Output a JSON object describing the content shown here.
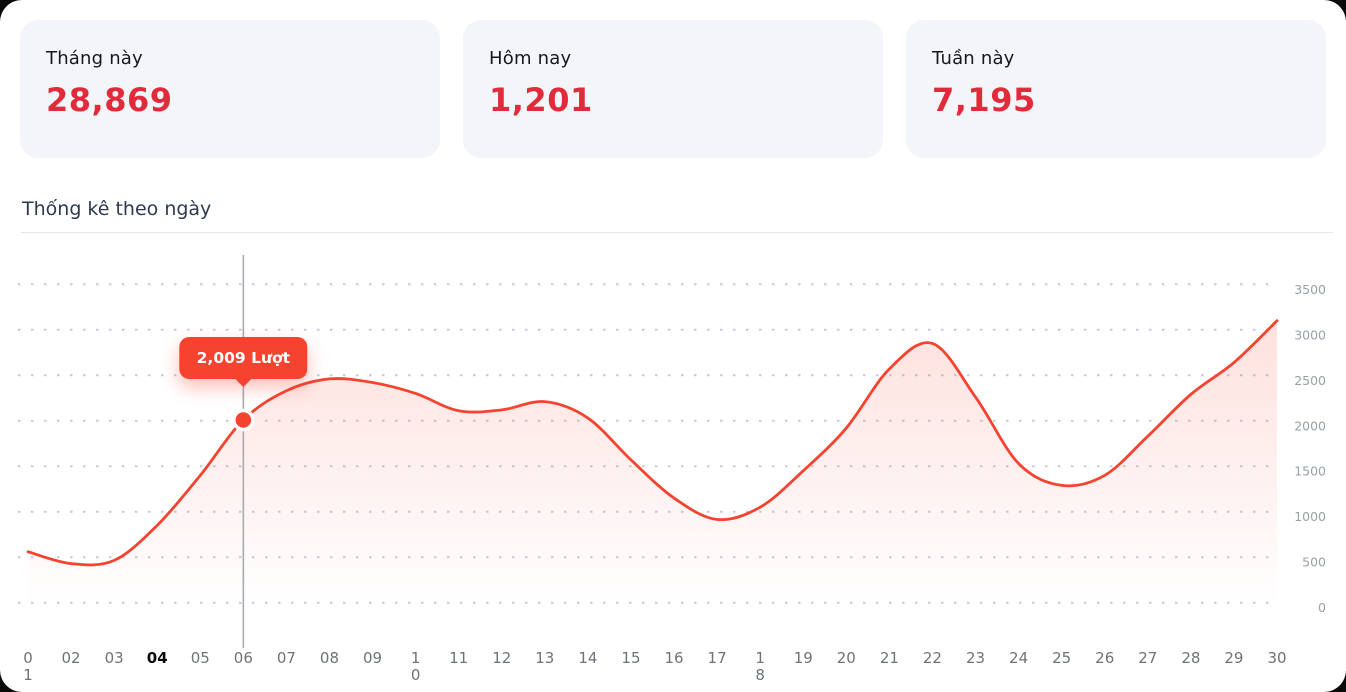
{
  "stats": [
    {
      "id": "month",
      "label": "Tháng này",
      "value": "28,869"
    },
    {
      "id": "today",
      "label": "Hôm nay",
      "value": "1,201"
    },
    {
      "id": "week",
      "label": "Tuần này",
      "value": "7,195"
    }
  ],
  "section": {
    "title": "Thống kê theo ngày"
  },
  "chart_data": {
    "type": "area",
    "title": "Thống kê theo ngày",
    "x_labels": [
      "01",
      "02",
      "03",
      "04",
      "05",
      "06",
      "07",
      "08",
      "09",
      "10",
      "11",
      "12",
      "13",
      "14",
      "15",
      "16",
      "17",
      "18",
      "19",
      "20",
      "21",
      "22",
      "23",
      "24",
      "25",
      "26",
      "27",
      "28",
      "29",
      "30"
    ],
    "series": [
      {
        "name": "Lượt",
        "values": [
          560,
          430,
          465,
          850,
          1400,
          2009,
          2330,
          2460,
          2420,
          2300,
          2110,
          2120,
          2210,
          2030,
          1570,
          1150,
          915,
          1050,
          1450,
          1920,
          2570,
          2850,
          2260,
          1530,
          1290,
          1400,
          1830,
          2290,
          2640,
          3100
        ]
      }
    ],
    "ylim": [
      0,
      3500
    ],
    "yticks": [
      0,
      500,
      1000,
      1500,
      2000,
      2500,
      3000,
      3500
    ],
    "grid": "dotted-horizontal",
    "legend": "none",
    "highlight": {
      "index": 5,
      "x_label": "06",
      "value": 2009,
      "tooltip": "2,009 Lượt"
    },
    "bold_x_label": "04",
    "two_line_x_labels": [
      "01",
      "10",
      "18"
    ],
    "colors": {
      "line": "#f5432f",
      "area_top": "rgba(245,67,47,0.16)",
      "area_bottom": "rgba(245,67,47,0)",
      "tooltip_bg": "#f5432f",
      "value_text": "#e22b3a",
      "grid_dot": "#afbacc",
      "x_axis_text": "#6e7378",
      "y_axis_text": "#9aa0a8",
      "crosshair": "#a8abb0"
    }
  }
}
